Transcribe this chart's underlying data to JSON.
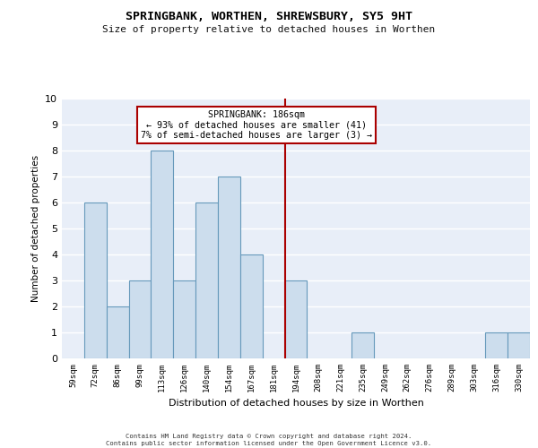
{
  "title": "SPRINGBANK, WORTHEN, SHREWSBURY, SY5 9HT",
  "subtitle": "Size of property relative to detached houses in Worthen",
  "xlabel": "Distribution of detached houses by size in Worthen",
  "ylabel": "Number of detached properties",
  "categories": [
    "59sqm",
    "72sqm",
    "86sqm",
    "99sqm",
    "113sqm",
    "126sqm",
    "140sqm",
    "154sqm",
    "167sqm",
    "181sqm",
    "194sqm",
    "208sqm",
    "221sqm",
    "235sqm",
    "249sqm",
    "262sqm",
    "276sqm",
    "289sqm",
    "303sqm",
    "316sqm",
    "330sqm"
  ],
  "values": [
    0,
    6,
    2,
    3,
    8,
    3,
    6,
    7,
    4,
    0,
    3,
    0,
    0,
    1,
    0,
    0,
    0,
    0,
    0,
    1,
    1
  ],
  "bar_color": "#ccdded",
  "bar_edgecolor": "#6699bb",
  "bar_linewidth": 0.8,
  "vline_x": 9.5,
  "vline_color": "#aa0000",
  "vline_linewidth": 1.5,
  "annotation_text": "SPRINGBANK: 186sqm\n← 93% of detached houses are smaller (41)\n7% of semi-detached houses are larger (3) →",
  "annotation_box_color": "#ffffff",
  "annotation_box_edgecolor": "#aa0000",
  "ylim": [
    0,
    10
  ],
  "yticks": [
    0,
    1,
    2,
    3,
    4,
    5,
    6,
    7,
    8,
    9,
    10
  ],
  "background_color": "#e8eef8",
  "grid_color": "#ffffff",
  "footer_line1": "Contains HM Land Registry data © Crown copyright and database right 2024.",
  "footer_line2": "Contains public sector information licensed under the Open Government Licence v3.0."
}
